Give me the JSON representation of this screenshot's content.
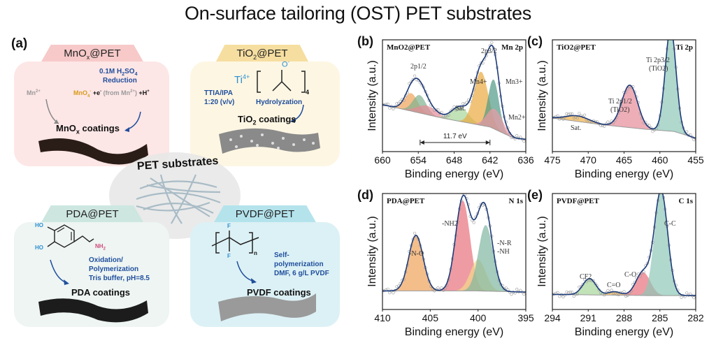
{
  "title": "On-surface tailoring (OST) PET substrates",
  "panel_a": {
    "letter": "(a)",
    "center_label": "PET substrates",
    "cards": {
      "mnox": {
        "tab": "MnOx@PET",
        "reagent_line1": "0.1M H2SO4",
        "reagent_line2": "Reduction",
        "precursor": "Mn2+",
        "reaction_a": "MnO4- ",
        "reaction_b": "+e- (from Mn2+) +H+",
        "coating": "MnOx coatings",
        "color_bg": "#fde6e6",
        "color_tab": "#f7c9c9"
      },
      "tio2": {
        "tab": "TiO2@PET",
        "ti_label": "Ti4+",
        "o_label": "O-",
        "subscript": "4",
        "solvent_line1": "TTIA/IPA",
        "solvent_line2": "1:20 (v/v)",
        "process": "Hydrolyzation",
        "coating": "TiO2 coatings",
        "color_bg": "#fdf6e3",
        "color_tab": "#f6dea0"
      },
      "pda": {
        "tab": "PDA@PET",
        "ho1": "HO",
        "ho2": "HO",
        "nh2": "NH2",
        "process_line1": "Oxidation/",
        "process_line2": "Polymerization",
        "process_line3": "Tris buffer, pH=8.5",
        "coating": "PDA coatings",
        "color_bg": "#eef5f3",
        "color_tab": "#cde6e0"
      },
      "pvdf": {
        "tab": "PVDF@PET",
        "f1": "F",
        "f2": "F",
        "n": "n",
        "process_line1": "Self-",
        "process_line2": "polymerization",
        "process_line3": "DMF,  6 g/L PVDF",
        "coating": "PVDF coatings",
        "color_bg": "#dcf1f5",
        "color_tab": "#b4e3ec"
      }
    }
  },
  "chart_data": [
    {
      "id": "b",
      "letter": "(b)",
      "type": "line",
      "sample": "MnO2@PET",
      "core_level": "Mn 2p",
      "xlabel": "Binding energy (eV)",
      "ylabel": "Intensity (a.u.)",
      "xlim": [
        660,
        636
      ],
      "xticks": [
        660,
        654,
        648,
        642,
        636
      ],
      "ylim": [
        0,
        1
      ],
      "baseline": [
        [
          660,
          0.42
        ],
        [
          650,
          0.3
        ],
        [
          642,
          0.22
        ],
        [
          638,
          0.12
        ],
        [
          636,
          0.11
        ]
      ],
      "peaks": [
        {
          "label": "2p1/2 (orange)",
          "center": 655.2,
          "height": 0.16,
          "width": 1.1,
          "color": "#f0a25a"
        },
        {
          "label": "2p1/2 (green)",
          "center": 653.8,
          "height": 0.16,
          "width": 1.1,
          "color": "#7fb08f"
        },
        {
          "label": "2p1/2 (pink)",
          "center": 652.6,
          "height": 0.08,
          "width": 1.6,
          "color": "#e58c98"
        },
        {
          "label": "Sat.",
          "center": 647.0,
          "height": 0.13,
          "width": 1.4,
          "color": "#a8d69a"
        },
        {
          "label": "Mn4+",
          "center": 643.5,
          "height": 0.48,
          "width": 1.2,
          "color": "#e9a93f"
        },
        {
          "label": "Mn3+",
          "center": 641.4,
          "height": 0.44,
          "width": 0.9,
          "color": "#4f9a86"
        },
        {
          "label": "Mn2+",
          "center": 641.2,
          "height": 0.18,
          "width": 1.3,
          "color": "#ee9aa5"
        }
      ],
      "annotations": [
        "2p1/2",
        "2p3/2",
        "Mn4+",
        "Mn3+",
        "Mn2+",
        "Sat.",
        "11.7 eV"
      ],
      "splitting_eV": 11.7,
      "splitting_from": 653.7,
      "splitting_to": 642.0
    },
    {
      "id": "c",
      "letter": "(c)",
      "type": "line",
      "sample": "TiO2@PET",
      "core_level": "Ti 2p",
      "xlabel": "Binding energy (eV)",
      "ylabel": "Intensity (a.u.)",
      "xlim": [
        475,
        455
      ],
      "xticks": [
        475,
        470,
        465,
        460,
        455
      ],
      "ylim": [
        0,
        1
      ],
      "baseline": [
        [
          475,
          0.3
        ],
        [
          468,
          0.24
        ],
        [
          462,
          0.2
        ],
        [
          458,
          0.18
        ],
        [
          455,
          0.12
        ]
      ],
      "peaks": [
        {
          "label": "Sat.",
          "center": 471.5,
          "height": 0.05,
          "width": 1.6,
          "color": "#f0b04a"
        },
        {
          "label": "Ti 2p1/2 (TiO2)",
          "center": 464.2,
          "height": 0.38,
          "width": 1.1,
          "color": "#e58c98"
        },
        {
          "label": "Ti 2p3/2 (TiO2)",
          "center": 458.5,
          "height": 0.92,
          "width": 0.75,
          "color": "#8ec7b7"
        }
      ],
      "annotations": [
        "Sat.",
        "Ti 2p1/2 (TiO2)",
        "Ti 2p3/2 (TiO2)"
      ]
    },
    {
      "id": "d",
      "letter": "(d)",
      "type": "line",
      "sample": "PDA@PET",
      "core_level": "N 1s",
      "xlabel": "Binding energy (eV)",
      "ylabel": "Intensity (a.u.)",
      "xlim": [
        410,
        395
      ],
      "xticks": [
        410,
        405,
        400,
        395
      ],
      "ylim": [
        0,
        1
      ],
      "baseline": [
        [
          410,
          0.16
        ],
        [
          400,
          0.16
        ],
        [
          395,
          0.15
        ]
      ],
      "peaks": [
        {
          "label": "-N-O",
          "center": 406.5,
          "height": 0.48,
          "width": 0.75,
          "color": "#f0a25a"
        },
        {
          "label": "-NH2",
          "center": 401.6,
          "height": 0.78,
          "width": 0.75,
          "color": "#e8707c"
        },
        {
          "label": "-NH",
          "center": 400.0,
          "height": 0.27,
          "width": 0.8,
          "color": "#f5d98a"
        },
        {
          "label": "-N-R",
          "center": 399.2,
          "height": 0.57,
          "width": 0.75,
          "color": "#7fb6a0"
        }
      ],
      "annotations": [
        "-N-O",
        "-NH2",
        "-N-R",
        "-NH"
      ]
    },
    {
      "id": "e",
      "letter": "(e)",
      "type": "line",
      "sample": "PVDF@PET",
      "core_level": "C 1s",
      "xlabel": "Binding energy (eV)",
      "ylabel": "Intensity (a.u.)",
      "xlim": [
        294,
        282
      ],
      "xticks": [
        294,
        291,
        288,
        285,
        282
      ],
      "ylim": [
        0,
        1
      ],
      "baseline": [
        [
          294,
          0.13
        ],
        [
          286,
          0.12
        ],
        [
          282,
          0.12
        ]
      ],
      "peaks": [
        {
          "label": "CF2",
          "center": 290.9,
          "height": 0.14,
          "width": 0.55,
          "color": "#a8d69a"
        },
        {
          "label": "C=O",
          "center": 288.8,
          "height": 0.03,
          "width": 0.5,
          "color": "#f0b04a"
        },
        {
          "label": "C-O",
          "center": 286.4,
          "height": 0.2,
          "width": 0.6,
          "color": "#e8707c"
        },
        {
          "label": "C-C",
          "center": 284.9,
          "height": 0.9,
          "width": 0.55,
          "color": "#8ec7b7"
        }
      ],
      "annotations": [
        "CF2",
        "C=O",
        "C-O",
        "C-C"
      ]
    }
  ]
}
